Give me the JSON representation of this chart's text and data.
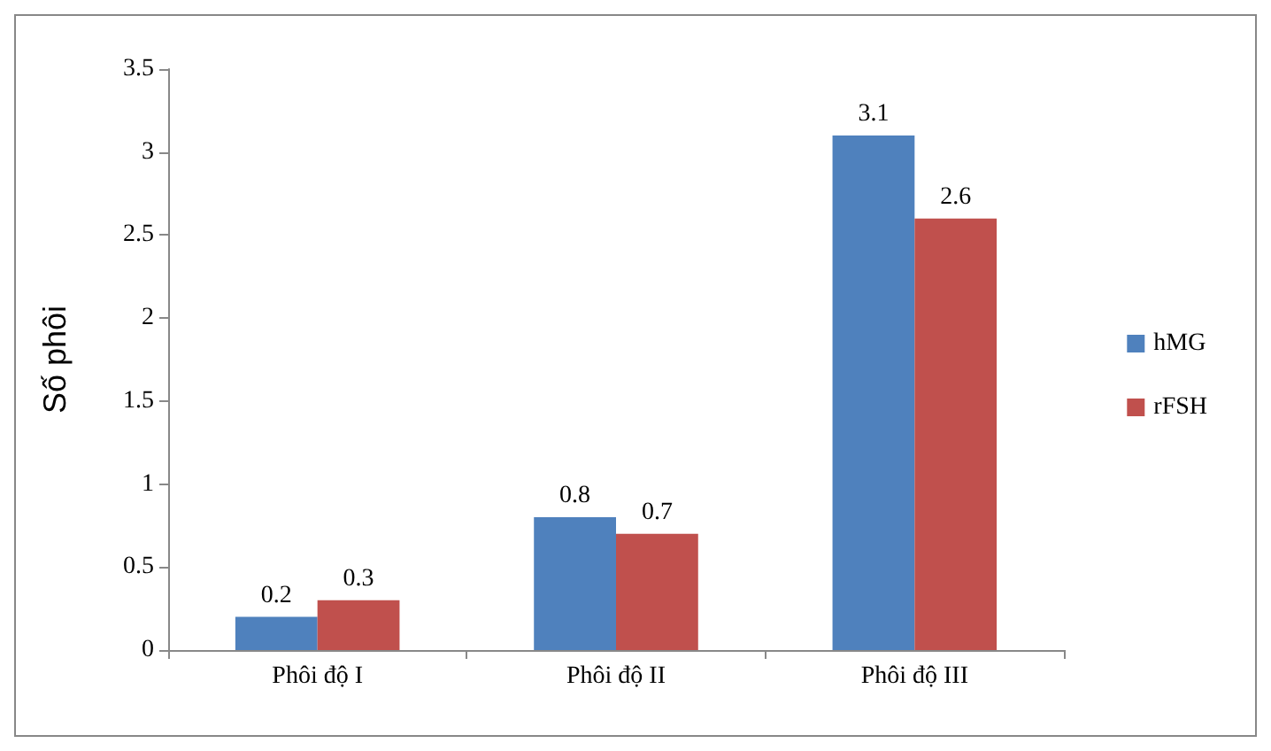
{
  "chart_data": {
    "type": "bar",
    "ylabel": "Số phôi",
    "categories": [
      "Phôi độ I",
      "Phôi độ II",
      "Phôi độ III"
    ],
    "series": [
      {
        "name": "hMG",
        "color": "#4f81bd",
        "values": [
          0.2,
          0.8,
          3.1
        ]
      },
      {
        "name": "rFSH",
        "color": "#c0504d",
        "values": [
          0.3,
          0.7,
          2.6
        ]
      }
    ],
    "ylim": [
      0,
      3.5
    ],
    "yticks": [
      0,
      0.5,
      1,
      1.5,
      2,
      2.5,
      3,
      3.5
    ],
    "data_labels": true,
    "legend": "right",
    "grid": false
  }
}
